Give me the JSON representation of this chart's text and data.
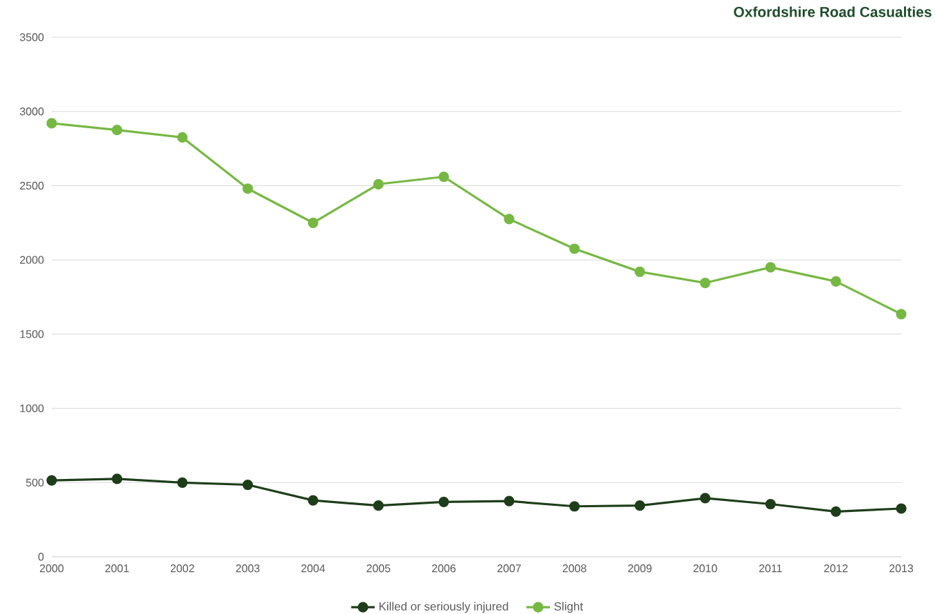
{
  "chart_data": {
    "type": "line",
    "title": "Oxfordshire Road Casualties",
    "x": [
      2000,
      2001,
      2002,
      2003,
      2004,
      2005,
      2006,
      2007,
      2008,
      2009,
      2010,
      2011,
      2012,
      2013
    ],
    "series": [
      {
        "name": "Killed or seriously injured",
        "color": "#1e3d1a",
        "values": [
          515,
          525,
          500,
          485,
          380,
          345,
          370,
          375,
          340,
          345,
          395,
          355,
          305,
          325
        ]
      },
      {
        "name": "Slight",
        "color": "#76b843",
        "values": [
          2920,
          2875,
          2825,
          2480,
          2250,
          2510,
          2560,
          2275,
          2075,
          1920,
          1845,
          1950,
          1855,
          1635
        ]
      }
    ],
    "xlim": [
      2000,
      2013
    ],
    "xticks": [
      2000,
      2001,
      2002,
      2003,
      2004,
      2005,
      2006,
      2007,
      2008,
      2009,
      2010,
      2011,
      2012,
      2013
    ],
    "ylim": [
      0,
      3500
    ],
    "yticks": [
      0,
      500,
      1000,
      1500,
      2000,
      2500,
      3000,
      3500
    ],
    "grid": "y",
    "legend": "bottom",
    "marker": "circle",
    "line_style": "solid"
  }
}
